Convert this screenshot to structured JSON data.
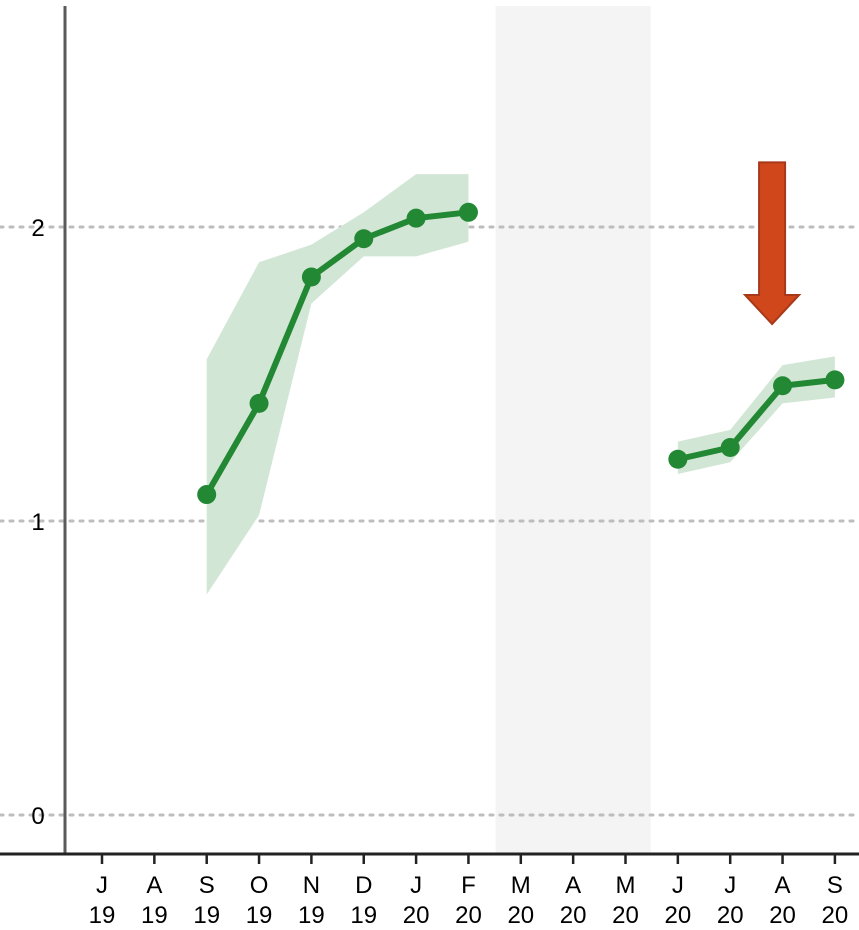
{
  "chart_data": {
    "type": "line",
    "title": "",
    "xlabel": "",
    "ylabel": "",
    "ylim": [
      -0.13,
      2.75
    ],
    "yticks": [
      0,
      1,
      2
    ],
    "ytick_labels": [
      "0",
      "1",
      "2"
    ],
    "grid": "horizontal dotted at y ticks",
    "legend": "none",
    "categories": [
      {
        "m": "J",
        "y": "19"
      },
      {
        "m": "A",
        "y": "19"
      },
      {
        "m": "S",
        "y": "19"
      },
      {
        "m": "O",
        "y": "19"
      },
      {
        "m": "N",
        "y": "19"
      },
      {
        "m": "D",
        "y": "19"
      },
      {
        "m": "J",
        "y": "20"
      },
      {
        "m": "F",
        "y": "20"
      },
      {
        "m": "M",
        "y": "20"
      },
      {
        "m": "A",
        "y": "20"
      },
      {
        "m": "M",
        "y": "20"
      },
      {
        "m": "J",
        "y": "20"
      },
      {
        "m": "J",
        "y": "20"
      },
      {
        "m": "A",
        "y": "20"
      },
      {
        "m": "S",
        "y": "20"
      }
    ],
    "series": [
      {
        "values": [
          null,
          null,
          1.09,
          1.4,
          1.83,
          1.96,
          2.03,
          2.05,
          null,
          null,
          null,
          1.21,
          1.25,
          1.46,
          1.48
        ],
        "lower": [
          null,
          null,
          0.75,
          1.02,
          1.74,
          1.9,
          1.9,
          1.95,
          null,
          null,
          null,
          1.16,
          1.2,
          1.4,
          1.42
        ],
        "upper": [
          null,
          null,
          1.55,
          1.88,
          1.94,
          2.05,
          2.18,
          2.18,
          null,
          null,
          null,
          1.27,
          1.31,
          1.53,
          1.56
        ],
        "color": "#228833",
        "band_color": "#d2e6d6"
      }
    ],
    "shaded_region": {
      "from_index": 8,
      "to_index": 10,
      "color": "#f4f4f4"
    },
    "annotation": {
      "type": "down-arrow",
      "x_index": 12.8,
      "y_from": 2.22,
      "y_to": 1.67,
      "color": "#d0471c",
      "stroke": "#a8381a"
    }
  }
}
